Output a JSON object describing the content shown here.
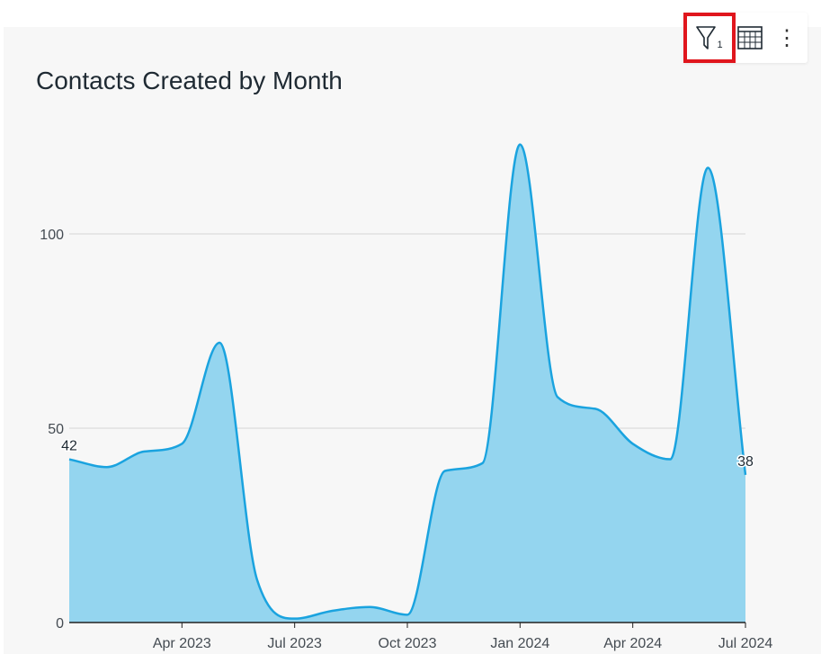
{
  "chart_data": {
    "type": "area",
    "title": "Contacts Created by Month",
    "xlabel": "",
    "ylabel": "",
    "x": [
      "2023-01",
      "2023-02",
      "2023-03",
      "2023-04",
      "2023-05",
      "2023-06",
      "2023-07",
      "2023-08",
      "2023-09",
      "2023-10",
      "2023-11",
      "2023-12",
      "2024-01",
      "2024-02",
      "2024-03",
      "2024-04",
      "2024-05",
      "2024-06",
      "2024-07"
    ],
    "values": [
      42,
      40,
      44,
      46,
      72,
      11,
      1,
      3,
      4,
      2,
      39,
      41,
      123,
      58,
      55,
      46,
      42,
      117,
      38
    ],
    "ylim": [
      0,
      125
    ],
    "y_ticks": [
      0,
      50,
      100
    ],
    "y_tick_labels": [
      "0",
      "50",
      "100"
    ],
    "x_ticks": [
      "2023-04",
      "2023-07",
      "2023-10",
      "2024-01",
      "2024-04",
      "2024-07"
    ],
    "x_tick_labels": [
      "Apr 2023",
      "Jul 2023",
      "Oct 2023",
      "Jan 2024",
      "Apr 2024",
      "Jul 2024"
    ],
    "data_labels": [
      {
        "index": 0,
        "text": "42"
      },
      {
        "index": 18,
        "text": "38"
      }
    ],
    "grid": true,
    "colors": {
      "fill": "#94d5ef",
      "line": "#1aa3df",
      "grid": "#d6d6d6",
      "axis": "#222222"
    }
  },
  "toolbar": {
    "filter_icon": "filter-icon",
    "filter_count": "1",
    "table_icon": "table-icon",
    "more_icon": "more-vertical-icon",
    "more_glyph": "⋮",
    "highlight_color": "#e0161d"
  }
}
